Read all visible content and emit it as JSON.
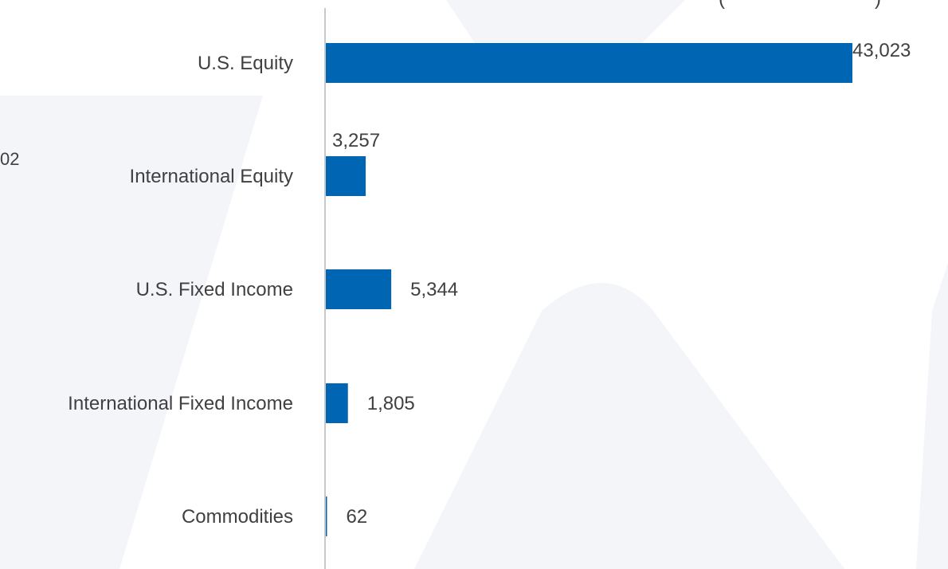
{
  "chart_data": {
    "type": "bar",
    "orientation": "horizontal",
    "title": "",
    "xlabel": "",
    "ylabel": "",
    "categories": [
      "U.S. Equity",
      "International Equity",
      "U.S. Fixed Income",
      "International Fixed Income",
      "Commodities"
    ],
    "values": [
      43023,
      3257,
      5344,
      1805,
      62
    ],
    "value_labels": [
      "43,023",
      "3,257",
      "5,344",
      "1,805",
      "62"
    ],
    "xlim": [
      0,
      50000
    ],
    "grid": false,
    "legend": "none",
    "bar_color": "#0066b3",
    "axis_color": "#c8c8c8"
  },
  "fragments": {
    "left_partial_label": "02",
    "top_partial_title": "("
  },
  "colors": {
    "background": "#ffffff",
    "watermark": "#f3f5f9",
    "text": "#404040"
  }
}
